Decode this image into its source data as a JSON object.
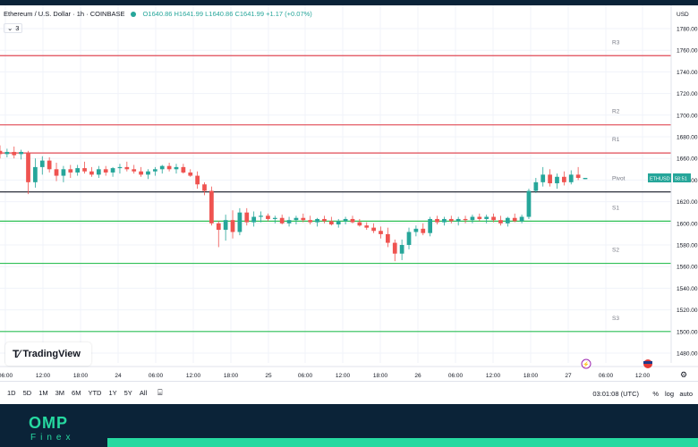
{
  "header": {
    "symbol": "Ethereum / U.S. Dollar · 1h · COINBASE",
    "ohlc": "O1640.86 H1641.99 L1640.86 C1641.99 +1.17 (+0.07%)",
    "indicator_count": "3"
  },
  "currency": "USD",
  "logo_text": "TradingView",
  "price_tag": {
    "label": "ETHUSD",
    "value": "1641.99",
    "shown": "58:51"
  },
  "timeframes": [
    "1D",
    "5D",
    "1M",
    "3M",
    "6M",
    "YTD",
    "1Y",
    "5Y",
    "All"
  ],
  "clock": "03:01:08 (UTC)",
  "scale_buttons": {
    "percent": "%",
    "log": "log",
    "auto": "auto"
  },
  "brand": {
    "name": "OMP",
    "sub": "Finex"
  },
  "colors": {
    "up": "#26a69a",
    "down": "#ef5350",
    "resistance": "#e04a55",
    "support": "#2fc056",
    "pivot": "#131722"
  },
  "chart_data": {
    "type": "candlestick",
    "ylim": [
      1460,
      1790
    ],
    "y_ticks": [
      1480,
      1500,
      1520,
      1540,
      1560,
      1580,
      1600,
      1620,
      1640,
      1660,
      1680,
      1700,
      1720,
      1740,
      1760,
      1780
    ],
    "x_ticks": [
      "06:00",
      "12:00",
      "18:00",
      "24",
      "06:00",
      "12:00",
      "18:00",
      "25",
      "06:00",
      "12:00",
      "18:00",
      "26",
      "06:00",
      "12:00",
      "18:00",
      "27",
      "06:00",
      "12:00"
    ],
    "levels": [
      {
        "name": "R3",
        "value": 1755
      },
      {
        "name": "R2",
        "value": 1691
      },
      {
        "name": "R1",
        "value": 1665
      },
      {
        "name": "Pivot",
        "value": 1629
      },
      {
        "name": "S1",
        "value": 1602
      },
      {
        "name": "S2",
        "value": 1563
      },
      {
        "name": "S3",
        "value": 1500
      }
    ],
    "candles": [
      {
        "o": 1667,
        "h": 1672,
        "l": 1660,
        "c": 1664
      },
      {
        "o": 1664,
        "h": 1669,
        "l": 1661,
        "c": 1666
      },
      {
        "o": 1666,
        "h": 1671,
        "l": 1660,
        "c": 1663
      },
      {
        "o": 1664,
        "h": 1668,
        "l": 1659,
        "c": 1666
      },
      {
        "o": 1665,
        "h": 1667,
        "l": 1627,
        "c": 1638
      },
      {
        "o": 1638,
        "h": 1660,
        "l": 1633,
        "c": 1652
      },
      {
        "o": 1652,
        "h": 1662,
        "l": 1645,
        "c": 1658
      },
      {
        "o": 1658,
        "h": 1661,
        "l": 1647,
        "c": 1650
      },
      {
        "o": 1650,
        "h": 1656,
        "l": 1639,
        "c": 1644
      },
      {
        "o": 1644,
        "h": 1653,
        "l": 1638,
        "c": 1650
      },
      {
        "o": 1650,
        "h": 1654,
        "l": 1642,
        "c": 1647
      },
      {
        "o": 1647,
        "h": 1654,
        "l": 1644,
        "c": 1651
      },
      {
        "o": 1651,
        "h": 1657,
        "l": 1646,
        "c": 1648
      },
      {
        "o": 1648,
        "h": 1652,
        "l": 1643,
        "c": 1645
      },
      {
        "o": 1645,
        "h": 1653,
        "l": 1642,
        "c": 1650
      },
      {
        "o": 1650,
        "h": 1653,
        "l": 1644,
        "c": 1647
      },
      {
        "o": 1647,
        "h": 1652,
        "l": 1643,
        "c": 1651
      },
      {
        "o": 1651,
        "h": 1655,
        "l": 1646,
        "c": 1652
      },
      {
        "o": 1652,
        "h": 1657,
        "l": 1648,
        "c": 1650
      },
      {
        "o": 1650,
        "h": 1654,
        "l": 1646,
        "c": 1648
      },
      {
        "o": 1648,
        "h": 1652,
        "l": 1643,
        "c": 1645
      },
      {
        "o": 1645,
        "h": 1650,
        "l": 1641,
        "c": 1648
      },
      {
        "o": 1648,
        "h": 1652,
        "l": 1644,
        "c": 1650
      },
      {
        "o": 1650,
        "h": 1654,
        "l": 1646,
        "c": 1653
      },
      {
        "o": 1653,
        "h": 1656,
        "l": 1648,
        "c": 1650
      },
      {
        "o": 1650,
        "h": 1655,
        "l": 1646,
        "c": 1652
      },
      {
        "o": 1652,
        "h": 1655,
        "l": 1646,
        "c": 1647
      },
      {
        "o": 1647,
        "h": 1650,
        "l": 1643,
        "c": 1644
      },
      {
        "o": 1644,
        "h": 1648,
        "l": 1632,
        "c": 1636
      },
      {
        "o": 1636,
        "h": 1638,
        "l": 1626,
        "c": 1630
      },
      {
        "o": 1630,
        "h": 1634,
        "l": 1598,
        "c": 1600
      },
      {
        "o": 1600,
        "h": 1602,
        "l": 1578,
        "c": 1594
      },
      {
        "o": 1594,
        "h": 1608,
        "l": 1584,
        "c": 1603
      },
      {
        "o": 1603,
        "h": 1612,
        "l": 1586,
        "c": 1592
      },
      {
        "o": 1592,
        "h": 1614,
        "l": 1589,
        "c": 1610
      },
      {
        "o": 1610,
        "h": 1614,
        "l": 1598,
        "c": 1601
      },
      {
        "o": 1601,
        "h": 1611,
        "l": 1597,
        "c": 1606
      },
      {
        "o": 1606,
        "h": 1611,
        "l": 1601,
        "c": 1607
      },
      {
        "o": 1607,
        "h": 1609,
        "l": 1602,
        "c": 1604
      },
      {
        "o": 1604,
        "h": 1607,
        "l": 1600,
        "c": 1605
      },
      {
        "o": 1605,
        "h": 1608,
        "l": 1599,
        "c": 1600
      },
      {
        "o": 1600,
        "h": 1606,
        "l": 1597,
        "c": 1603
      },
      {
        "o": 1603,
        "h": 1607,
        "l": 1599,
        "c": 1605
      },
      {
        "o": 1605,
        "h": 1609,
        "l": 1601,
        "c": 1603
      },
      {
        "o": 1603,
        "h": 1607,
        "l": 1599,
        "c": 1601
      },
      {
        "o": 1601,
        "h": 1605,
        "l": 1597,
        "c": 1604
      },
      {
        "o": 1604,
        "h": 1607,
        "l": 1600,
        "c": 1602
      },
      {
        "o": 1602,
        "h": 1606,
        "l": 1598,
        "c": 1599
      },
      {
        "o": 1599,
        "h": 1604,
        "l": 1596,
        "c": 1602
      },
      {
        "o": 1602,
        "h": 1606,
        "l": 1599,
        "c": 1604
      },
      {
        "o": 1604,
        "h": 1607,
        "l": 1600,
        "c": 1601
      },
      {
        "o": 1601,
        "h": 1604,
        "l": 1597,
        "c": 1598
      },
      {
        "o": 1598,
        "h": 1601,
        "l": 1594,
        "c": 1596
      },
      {
        "o": 1596,
        "h": 1600,
        "l": 1591,
        "c": 1593
      },
      {
        "o": 1593,
        "h": 1597,
        "l": 1586,
        "c": 1590
      },
      {
        "o": 1590,
        "h": 1596,
        "l": 1578,
        "c": 1582
      },
      {
        "o": 1582,
        "h": 1585,
        "l": 1565,
        "c": 1572
      },
      {
        "o": 1572,
        "h": 1585,
        "l": 1566,
        "c": 1580
      },
      {
        "o": 1580,
        "h": 1596,
        "l": 1576,
        "c": 1592
      },
      {
        "o": 1592,
        "h": 1598,
        "l": 1588,
        "c": 1595
      },
      {
        "o": 1595,
        "h": 1600,
        "l": 1589,
        "c": 1591
      },
      {
        "o": 1591,
        "h": 1606,
        "l": 1588,
        "c": 1604
      },
      {
        "o": 1604,
        "h": 1607,
        "l": 1599,
        "c": 1601
      },
      {
        "o": 1601,
        "h": 1606,
        "l": 1598,
        "c": 1604
      },
      {
        "o": 1604,
        "h": 1607,
        "l": 1600,
        "c": 1602
      },
      {
        "o": 1602,
        "h": 1606,
        "l": 1598,
        "c": 1604
      },
      {
        "o": 1604,
        "h": 1607,
        "l": 1600,
        "c": 1603
      },
      {
        "o": 1603,
        "h": 1608,
        "l": 1600,
        "c": 1606
      },
      {
        "o": 1606,
        "h": 1609,
        "l": 1602,
        "c": 1604
      },
      {
        "o": 1604,
        "h": 1608,
        "l": 1600,
        "c": 1606
      },
      {
        "o": 1606,
        "h": 1609,
        "l": 1601,
        "c": 1603
      },
      {
        "o": 1603,
        "h": 1607,
        "l": 1598,
        "c": 1600
      },
      {
        "o": 1600,
        "h": 1606,
        "l": 1597,
        "c": 1605
      },
      {
        "o": 1605,
        "h": 1609,
        "l": 1601,
        "c": 1602
      },
      {
        "o": 1602,
        "h": 1608,
        "l": 1600,
        "c": 1606
      },
      {
        "o": 1606,
        "h": 1632,
        "l": 1604,
        "c": 1630
      },
      {
        "o": 1630,
        "h": 1642,
        "l": 1628,
        "c": 1638
      },
      {
        "o": 1638,
        "h": 1652,
        "l": 1634,
        "c": 1645
      },
      {
        "o": 1645,
        "h": 1650,
        "l": 1634,
        "c": 1637
      },
      {
        "o": 1637,
        "h": 1646,
        "l": 1632,
        "c": 1643
      },
      {
        "o": 1643,
        "h": 1648,
        "l": 1635,
        "c": 1638
      },
      {
        "o": 1638,
        "h": 1649,
        "l": 1636,
        "c": 1645
      },
      {
        "o": 1645,
        "h": 1652,
        "l": 1640,
        "c": 1642
      },
      {
        "o": 1640.86,
        "h": 1641.99,
        "l": 1640.86,
        "c": 1641.99
      }
    ]
  }
}
